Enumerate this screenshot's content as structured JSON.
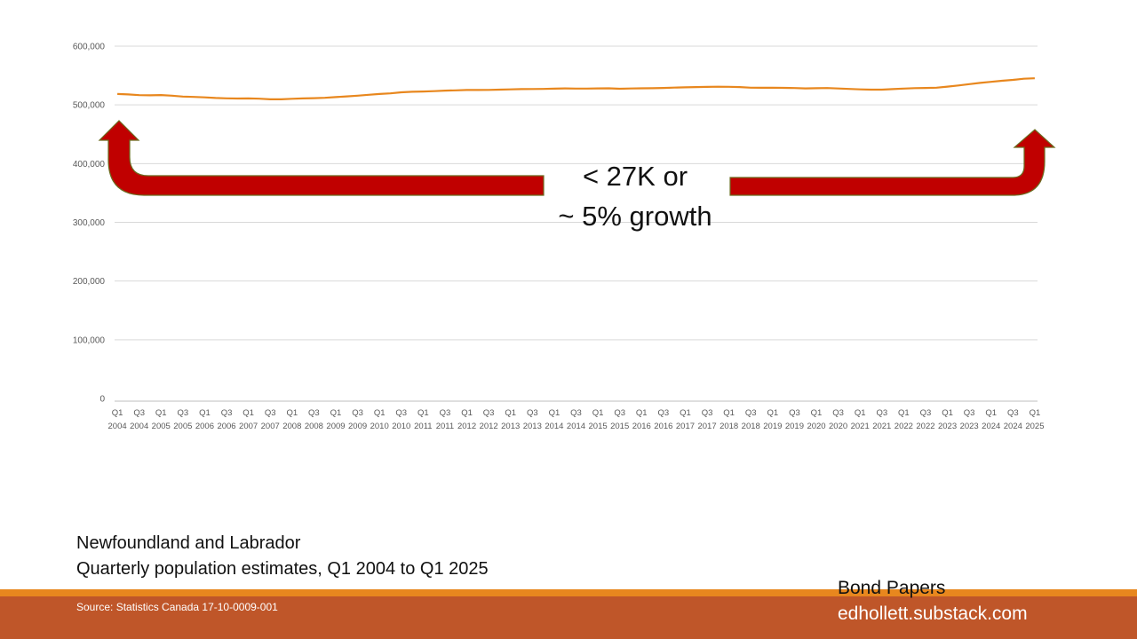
{
  "chart_data": {
    "type": "line",
    "title": "",
    "xlabel": "",
    "ylabel": "",
    "ylim": [
      0,
      600000
    ],
    "yticks": [
      "0",
      "100,000",
      "200,000",
      "300,000",
      "400,000",
      "500,000",
      "600,000"
    ],
    "grid": true,
    "legend": "none",
    "x": [
      "Q1 2004",
      "Q2 2004",
      "Q3 2004",
      "Q4 2004",
      "Q1 2005",
      "Q2 2005",
      "Q3 2005",
      "Q4 2005",
      "Q1 2006",
      "Q2 2006",
      "Q3 2006",
      "Q4 2006",
      "Q1 2007",
      "Q2 2007",
      "Q3 2007",
      "Q4 2007",
      "Q1 2008",
      "Q2 2008",
      "Q3 2008",
      "Q4 2008",
      "Q1 2009",
      "Q2 2009",
      "Q3 2009",
      "Q4 2009",
      "Q1 2010",
      "Q2 2010",
      "Q3 2010",
      "Q4 2010",
      "Q1 2011",
      "Q2 2011",
      "Q3 2011",
      "Q4 2011",
      "Q1 2012",
      "Q2 2012",
      "Q3 2012",
      "Q4 2012",
      "Q1 2013",
      "Q2 2013",
      "Q3 2013",
      "Q4 2013",
      "Q1 2014",
      "Q2 2014",
      "Q3 2014",
      "Q4 2014",
      "Q1 2015",
      "Q2 2015",
      "Q3 2015",
      "Q4 2015",
      "Q1 2016",
      "Q2 2016",
      "Q3 2016",
      "Q4 2016",
      "Q1 2017",
      "Q2 2017",
      "Q3 2017",
      "Q4 2017",
      "Q1 2018",
      "Q2 2018",
      "Q3 2018",
      "Q4 2018",
      "Q1 2019",
      "Q2 2019",
      "Q3 2019",
      "Q4 2019",
      "Q1 2020",
      "Q2 2020",
      "Q3 2020",
      "Q4 2020",
      "Q1 2021",
      "Q2 2021",
      "Q3 2021",
      "Q4 2021",
      "Q1 2022",
      "Q2 2022",
      "Q3 2022",
      "Q4 2022",
      "Q1 2023",
      "Q2 2023",
      "Q3 2023",
      "Q4 2023",
      "Q1 2024",
      "Q2 2024",
      "Q3 2024",
      "Q4 2024",
      "Q1 2025"
    ],
    "x_tick_labels": [
      [
        "Q1",
        "2004"
      ],
      [
        "Q3",
        "2004"
      ],
      [
        "Q1",
        "2005"
      ],
      [
        "Q3",
        "2005"
      ],
      [
        "Q1",
        "2006"
      ],
      [
        "Q3",
        "2006"
      ],
      [
        "Q1",
        "2007"
      ],
      [
        "Q3",
        "2007"
      ],
      [
        "Q1",
        "2008"
      ],
      [
        "Q3",
        "2008"
      ],
      [
        "Q1",
        "2009"
      ],
      [
        "Q3",
        "2009"
      ],
      [
        "Q1",
        "2010"
      ],
      [
        "Q3",
        "2010"
      ],
      [
        "Q1",
        "2011"
      ],
      [
        "Q3",
        "2011"
      ],
      [
        "Q1",
        "2012"
      ],
      [
        "Q3",
        "2012"
      ],
      [
        "Q1",
        "2013"
      ],
      [
        "Q3",
        "2013"
      ],
      [
        "Q1",
        "2014"
      ],
      [
        "Q3",
        "2014"
      ],
      [
        "Q1",
        "2015"
      ],
      [
        "Q3",
        "2015"
      ],
      [
        "Q1",
        "2016"
      ],
      [
        "Q3",
        "2016"
      ],
      [
        "Q1",
        "2017"
      ],
      [
        "Q3",
        "2017"
      ],
      [
        "Q1",
        "2018"
      ],
      [
        "Q3",
        "2018"
      ],
      [
        "Q1",
        "2019"
      ],
      [
        "Q3",
        "2019"
      ],
      [
        "Q1",
        "2020"
      ],
      [
        "Q3",
        "2020"
      ],
      [
        "Q1",
        "2021"
      ],
      [
        "Q3",
        "2021"
      ],
      [
        "Q1",
        "2022"
      ],
      [
        "Q3",
        "2022"
      ],
      [
        "Q1",
        "2023"
      ],
      [
        "Q3",
        "2023"
      ],
      [
        "Q1",
        "2024"
      ],
      [
        "Q3",
        "2024"
      ],
      [
        "Q1",
        "2025"
      ]
    ],
    "series": [
      {
        "values": [
          518500,
          517800,
          516500,
          516300,
          516800,
          515600,
          514200,
          513600,
          512800,
          511700,
          511100,
          510900,
          511000,
          510600,
          509500,
          509400,
          510400,
          511000,
          511500,
          512100,
          513300,
          514400,
          515700,
          517200,
          518600,
          519600,
          521400,
          522300,
          522700,
          523300,
          524300,
          524800,
          525300,
          525300,
          525500,
          525900,
          526400,
          526900,
          527000,
          527100,
          527600,
          528000,
          527700,
          527800,
          528100,
          528200,
          527500,
          527900,
          528200,
          528400,
          528800,
          529400,
          529900,
          530300,
          530600,
          530900,
          530800,
          530300,
          529300,
          529100,
          529300,
          529000,
          528600,
          528100,
          528400,
          528700,
          527900,
          527100,
          526400,
          525900,
          525900,
          526800,
          527800,
          528500,
          528800,
          529200,
          531100,
          533000,
          535300,
          537500,
          539300,
          541000,
          542600,
          544600,
          545300
        ]
      }
    ]
  },
  "annotation": {
    "line1": "< 27K or",
    "line2": "~ 5% growth"
  },
  "caption": {
    "line1": "Newfoundland and Labrador",
    "line2": "Quarterly population estimates, Q1 2004 to Q1 2025"
  },
  "source": "Source: Statistics Canada 17-10-0009-001",
  "brand": {
    "name": "Bond Papers",
    "url": "edhollett.substack.com"
  },
  "colors": {
    "line": "#E8871E",
    "arrow_fill": "#C00000",
    "arrow_stroke": "#6B6B1F",
    "band_top": "#E8871E",
    "band": "#BF5629",
    "gridline": "#D9D9D9"
  }
}
